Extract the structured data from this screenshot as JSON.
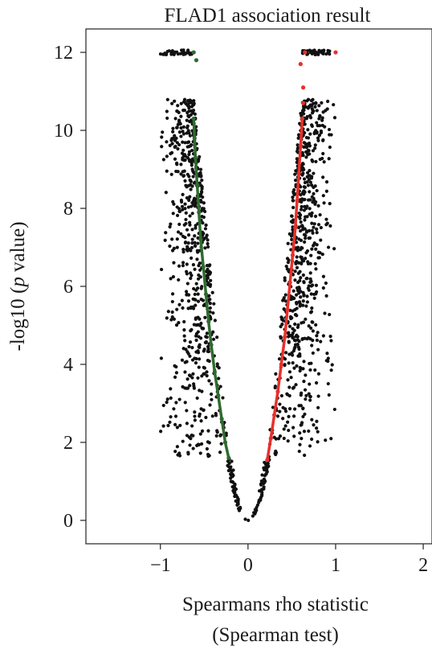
{
  "chart_data": {
    "type": "scatter",
    "title": "FLAD1 association result",
    "xlabel_line1": "Spearmans rho statistic",
    "xlabel_line2": "(Spearman test)",
    "ylabel_prefix": "-log10 (",
    "ylabel_italic": "p",
    "ylabel_suffix": " value)",
    "xlim": [
      -1.85,
      2.1
    ],
    "ylim": [
      -0.6,
      12.6
    ],
    "x_ticks": [
      -1,
      0,
      1,
      2
    ],
    "x_tick_labels": [
      "−1",
      "0",
      "1",
      "2"
    ],
    "y_ticks": [
      0,
      2,
      4,
      6,
      8,
      10,
      12
    ],
    "y_tick_labels": [
      "0",
      "2",
      "4",
      "6",
      "8",
      "10",
      "12"
    ],
    "grid": false,
    "significance_cutoff": 1.6,
    "colors": {
      "negative": "#2f6b2f",
      "positive": "#e8302a",
      "neutral": "#111111",
      "axis": "#222222"
    },
    "series": [
      {
        "color": "negative",
        "points": [
          [
            -0.22,
            1.6
          ],
          [
            -0.26,
            2.0
          ],
          [
            -0.3,
            2.6
          ],
          [
            -0.34,
            3.2
          ],
          [
            -0.38,
            3.8
          ],
          [
            -0.42,
            4.5
          ],
          [
            -0.45,
            5.1
          ],
          [
            -0.48,
            5.8
          ],
          [
            -0.51,
            6.5
          ],
          [
            -0.54,
            7.2
          ],
          [
            -0.56,
            7.9
          ],
          [
            -0.58,
            8.6
          ],
          [
            -0.6,
            9.3
          ],
          [
            -0.61,
            9.8
          ],
          [
            -0.62,
            10.3
          ],
          [
            -0.59,
            11.8
          ],
          [
            -0.62,
            12.0
          ]
        ]
      },
      {
        "color": "positive",
        "points": [
          [
            0.22,
            1.55
          ],
          [
            0.26,
            2.1
          ],
          [
            0.3,
            2.7
          ],
          [
            0.34,
            3.3
          ],
          [
            0.38,
            4.0
          ],
          [
            0.42,
            4.7
          ],
          [
            0.45,
            5.4
          ],
          [
            0.48,
            6.1
          ],
          [
            0.51,
            6.8
          ],
          [
            0.54,
            7.5
          ],
          [
            0.56,
            8.2
          ],
          [
            0.58,
            8.9
          ],
          [
            0.6,
            9.6
          ],
          [
            0.62,
            10.3
          ],
          [
            0.63,
            10.7
          ],
          [
            0.63,
            11.1
          ],
          [
            0.6,
            11.7
          ],
          [
            0.65,
            12.0
          ],
          [
            1.0,
            12.0
          ]
        ]
      }
    ]
  }
}
